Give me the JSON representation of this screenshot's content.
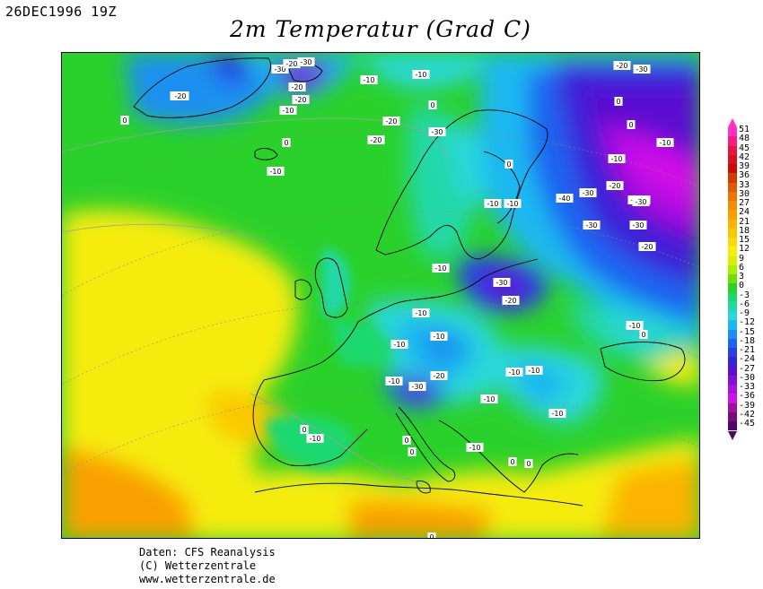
{
  "header": {
    "date": "26DEC1996 19Z",
    "title": "2m Temperatur (Grad C)"
  },
  "legend": {
    "values": [
      "51",
      "48",
      "45",
      "42",
      "39",
      "36",
      "33",
      "30",
      "27",
      "24",
      "21",
      "18",
      "15",
      "12",
      "9",
      "6",
      "3",
      "0",
      "-3",
      "-6",
      "-9",
      "-12",
      "-15",
      "-18",
      "-21",
      "-24",
      "-27",
      "-30",
      "-33",
      "-36",
      "-39",
      "-42",
      "-45"
    ],
    "colors": [
      "#ff2fc8",
      "#ff1a80",
      "#e8153c",
      "#d6121e",
      "#c80a0a",
      "#d23a00",
      "#e05a00",
      "#ec7400",
      "#f58c00",
      "#f9a000",
      "#fbb400",
      "#fbc800",
      "#fadc00",
      "#f5ec10",
      "#d8f000",
      "#aaee00",
      "#6ee000",
      "#2bd12b",
      "#1cd870",
      "#20d8a8",
      "#2ad8d8",
      "#1ab8f0",
      "#1a90f0",
      "#1e64f0",
      "#2840e6",
      "#3a20d8",
      "#5a10d0",
      "#8010d8",
      "#a810e0",
      "#d010e8",
      "#a0109c",
      "#7a0a80",
      "#4a0a66"
    ]
  },
  "map": {
    "contour_labels": [
      "-20",
      "-30",
      "-20",
      "-30",
      "-20",
      "-20",
      "-10",
      "-10",
      "-10",
      "-20",
      "0",
      "-20",
      "-30",
      "0",
      "0",
      "-10",
      "-10",
      "-20",
      "-30",
      "-40",
      "-30",
      "-40",
      "-30",
      "-30",
      "-30",
      "-20",
      "-30",
      "-20",
      "-10",
      "-10",
      "-10",
      "-30",
      "-20",
      "-10",
      "-10",
      "-10",
      "-10",
      "-10",
      "-30",
      "-20",
      "-20",
      "-10",
      "-10",
      "-10",
      "-10",
      "0",
      "0",
      "0",
      "-10",
      "-10",
      "0",
      "0",
      "0",
      "0",
      "0",
      "0",
      "0",
      "-10"
    ]
  },
  "footer": {
    "line1": "Daten: CFS Reanalysis",
    "line2": "(C) Wetterzentrale",
    "line3": "www.wetterzentrale.de"
  }
}
